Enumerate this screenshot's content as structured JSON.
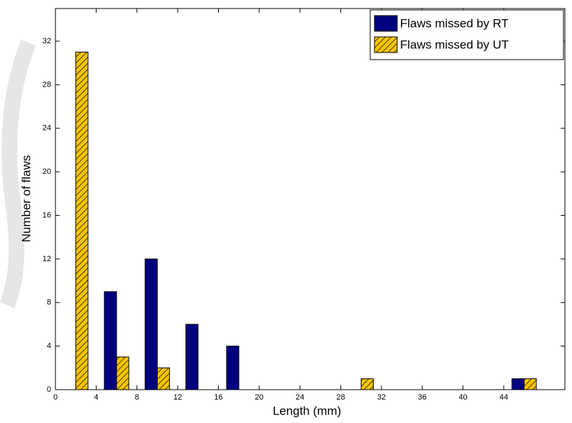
{
  "chart_data": {
    "type": "bar",
    "xlabel": "Length (mm)",
    "ylabel": "Number of flaws",
    "x": [
      2,
      6,
      10,
      14,
      18,
      22,
      26,
      30,
      34,
      38,
      42,
      46
    ],
    "series": [
      {
        "name": "Flaws missed by RT",
        "color": "#00007f",
        "values": [
          0,
          9,
          12,
          6,
          4,
          0,
          0,
          0,
          0,
          0,
          0,
          1
        ]
      },
      {
        "name": "Flaws missed by UT",
        "color": "#f5c400",
        "hatch": true,
        "values": [
          31,
          3,
          2,
          0,
          0,
          0,
          0,
          1,
          0,
          0,
          0,
          1
        ]
      }
    ],
    "xlim": [
      0,
      50
    ],
    "ylim": [
      0,
      35
    ],
    "xticks": [
      0,
      4,
      8,
      12,
      16,
      20,
      24,
      28,
      32,
      36,
      40,
      44
    ],
    "yticks": [
      0,
      4,
      8,
      12,
      16,
      20,
      24,
      28,
      32
    ],
    "legend": "northeast"
  }
}
